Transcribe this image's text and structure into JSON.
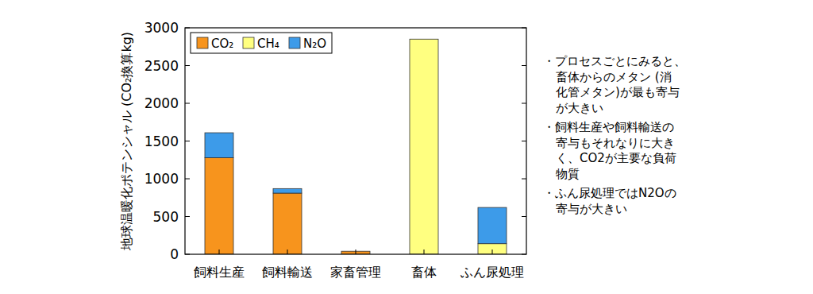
{
  "chart_data": {
    "type": "bar",
    "stacked": true,
    "y_label": "地球温暖化ポテンシャル (CO₂換算kg)",
    "categories": [
      "飼料生産",
      "飼料輸送",
      "家畜管理",
      "畜体",
      "ふん尿処理"
    ],
    "series": [
      {
        "name": "CO₂",
        "color": "#f7941d",
        "values": [
          1280,
          810,
          40,
          0,
          0
        ]
      },
      {
        "name": "CH₄",
        "color": "#ffff80",
        "values": [
          0,
          0,
          0,
          2850,
          140
        ]
      },
      {
        "name": "N₂O",
        "color": "#3d9be9",
        "values": [
          330,
          60,
          0,
          0,
          480
        ]
      }
    ],
    "ylim": [
      0,
      3000
    ],
    "yticks": [
      0,
      500,
      1000,
      1500,
      2000,
      2500,
      3000
    ],
    "legend": "top-left",
    "annotations": [
      [
        "・プロセスごとにみると、",
        "畜体からのメタン (消",
        "化管メタン)が最も寄与",
        "が大きい"
      ],
      [
        "・飼料生産や飼料輸送の",
        "寄与もそれなりに大き",
        "く、CO2が主要な負荷",
        "物質"
      ],
      [
        "・ふん尿処理ではN2Oの",
        "寄与が大きい"
      ]
    ]
  }
}
